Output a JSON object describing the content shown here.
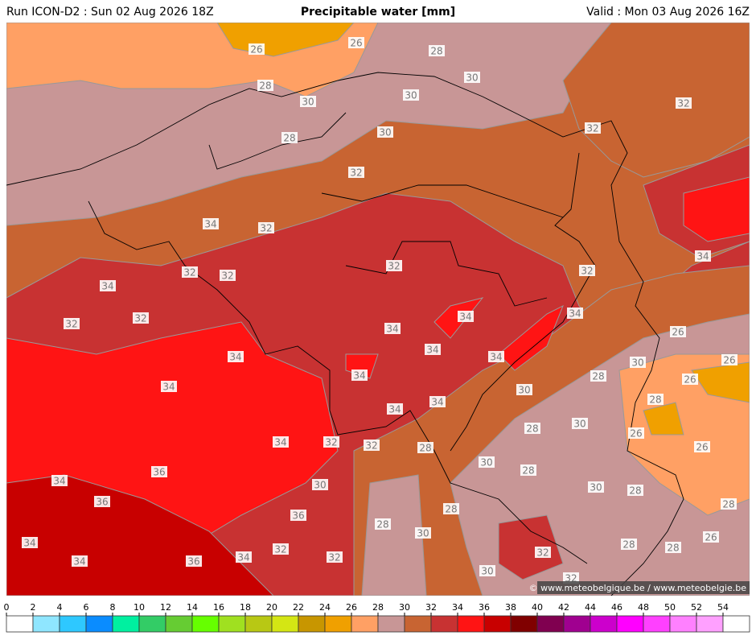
{
  "header": {
    "run": "Run ICON-D2 : Sun 02 Aug 2026 18Z",
    "title": "Precipitable water [mm]",
    "valid": "Valid : Mon 03 Aug 2026 16Z"
  },
  "copyright": "© www.meteobelgique.be / www.meteobelgie.be",
  "contour_labels": [
    26,
    26,
    28,
    30,
    28,
    30,
    30,
    32,
    30,
    28,
    32,
    32,
    34,
    32,
    32,
    32,
    32,
    32,
    34,
    34,
    32,
    32,
    34,
    34,
    34,
    26,
    34,
    34,
    34,
    30,
    26,
    34,
    28,
    26,
    34,
    30,
    28,
    34,
    34,
    30,
    28,
    26,
    32,
    32,
    34,
    28,
    26,
    30,
    36,
    28,
    34,
    30,
    30,
    28,
    36,
    28,
    28,
    36,
    28,
    30,
    26,
    34,
    32,
    28,
    28,
    32,
    34,
    34,
    36,
    32,
    30,
    32
  ],
  "colorbar": {
    "ticks": [
      0,
      2,
      4,
      6,
      8,
      10,
      12,
      14,
      16,
      18,
      20,
      22,
      24,
      26,
      28,
      30,
      32,
      34,
      36,
      38,
      40,
      42,
      44,
      46,
      48,
      50,
      52,
      54
    ],
    "colors": [
      "#ffffff",
      "#8fe6ff",
      "#2ec8ff",
      "#0a8cff",
      "#00f0a0",
      "#33cc66",
      "#66cc33",
      "#66ff00",
      "#a0e020",
      "#b8c814",
      "#d4e614",
      "#c89600",
      "#f0a000",
      "#ffa064",
      "#c89696",
      "#c86432",
      "#c83232",
      "#ff1414",
      "#c80000",
      "#800000",
      "#800050",
      "#a00090",
      "#cc00cc",
      "#ff00ff",
      "#ff40ff",
      "#ff80ff",
      "#ffa0ff",
      "#ffffff"
    ]
  }
}
